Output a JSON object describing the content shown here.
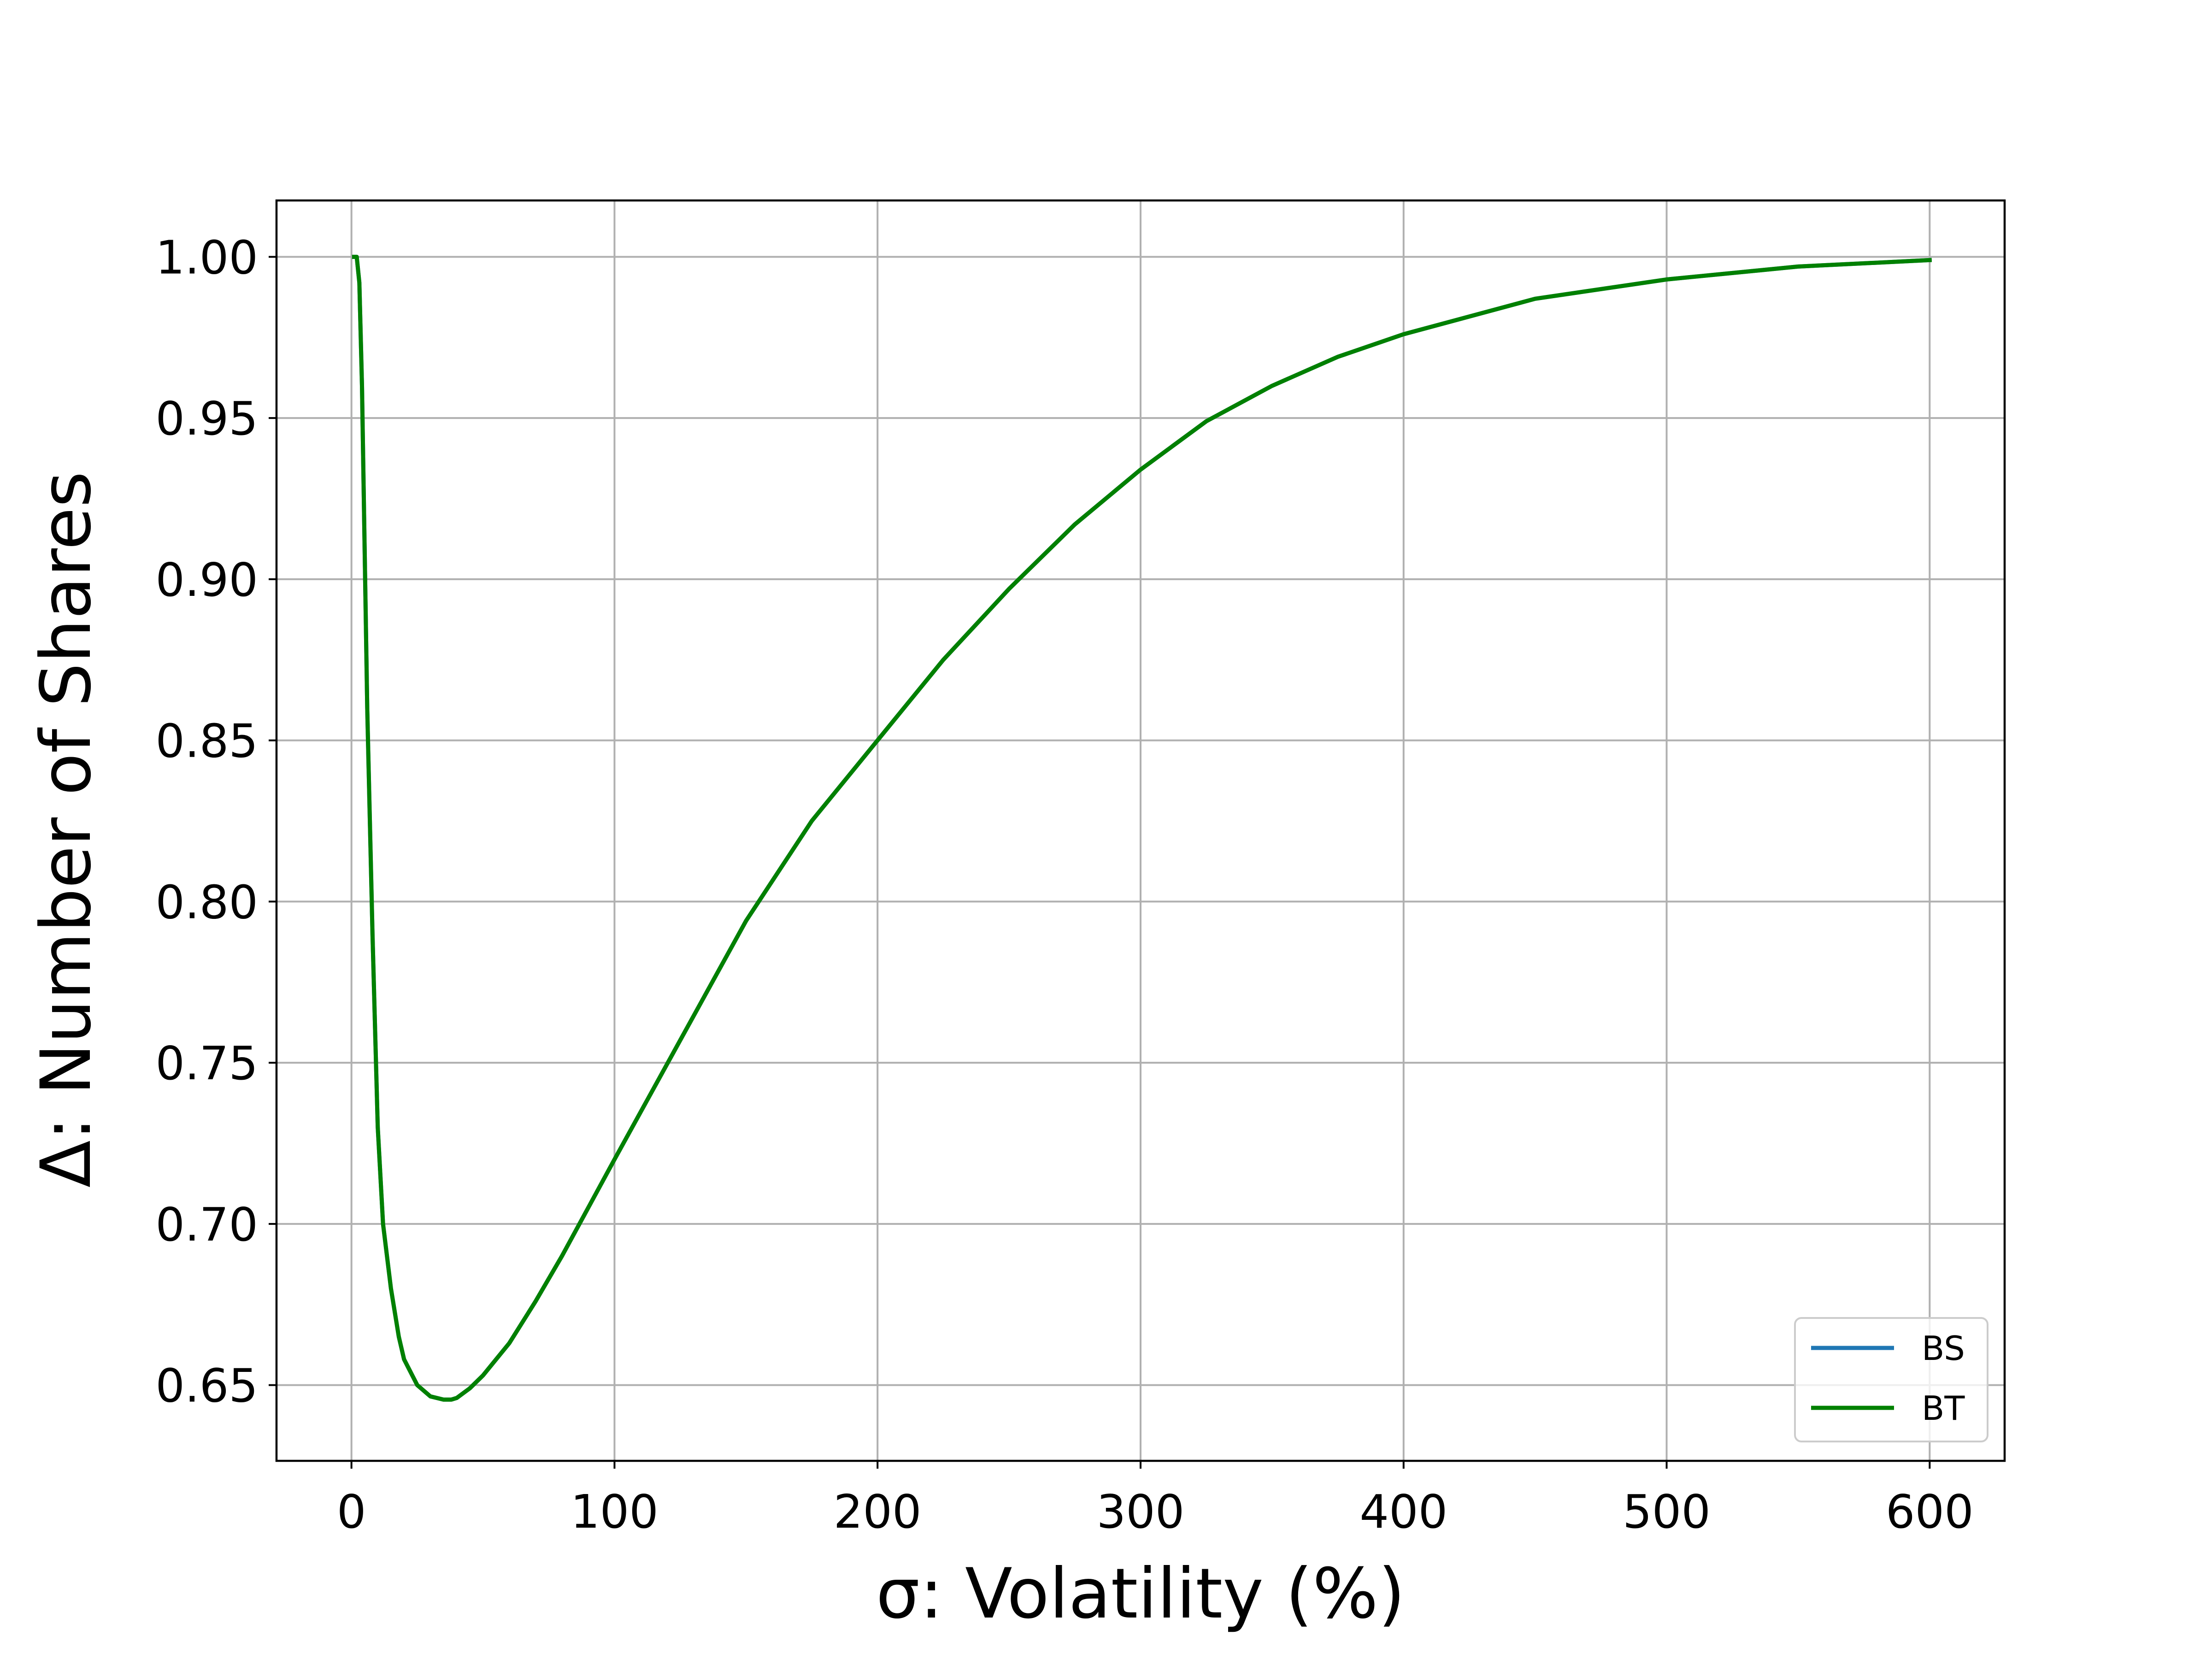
{
  "chart_data": {
    "type": "line",
    "xlabel": "σ: Volatility (%)",
    "ylabel": "Δ: Number of Shares",
    "xlim": [
      -28.5,
      628.5
    ],
    "ylim": [
      0.6265,
      1.0175
    ],
    "xticks": [
      0,
      100,
      200,
      300,
      400,
      500,
      600
    ],
    "xtick_labels": [
      "0",
      "100",
      "200",
      "300",
      "400",
      "500",
      "600"
    ],
    "yticks": [
      0.65,
      0.7,
      0.75,
      0.8,
      0.85,
      0.9,
      0.95,
      1.0
    ],
    "ytick_labels": [
      "0.65",
      "0.70",
      "0.75",
      "0.80",
      "0.85",
      "0.90",
      "0.95",
      "1.00"
    ],
    "grid": true,
    "legend_position": "lower-right",
    "colors": {
      "BS": "#1f77b4",
      "BT": "#008000",
      "grid": "#b0b0b0"
    },
    "x": [
      1,
      2,
      3,
      4,
      5,
      6,
      8,
      10,
      12,
      15,
      18,
      20,
      25,
      30,
      35,
      38,
      40,
      45,
      50,
      60,
      70,
      80,
      90,
      100,
      125,
      150,
      175,
      200,
      225,
      250,
      275,
      300,
      325,
      350,
      375,
      400,
      450,
      500,
      550,
      600
    ],
    "series": [
      {
        "name": "BS",
        "values": [
          1.0,
          1.0,
          0.992,
          0.96,
          0.91,
          0.86,
          0.79,
          0.73,
          0.7,
          0.68,
          0.665,
          0.658,
          0.65,
          0.6465,
          0.6455,
          0.6455,
          0.646,
          0.649,
          0.653,
          0.663,
          0.676,
          0.69,
          0.705,
          0.72,
          0.757,
          0.794,
          0.825,
          0.85,
          0.875,
          0.897,
          0.917,
          0.934,
          0.949,
          0.96,
          0.969,
          0.976,
          0.987,
          0.993,
          0.997,
          0.999
        ]
      },
      {
        "name": "BT",
        "values": [
          1.0,
          1.0,
          0.992,
          0.96,
          0.91,
          0.86,
          0.79,
          0.73,
          0.7,
          0.68,
          0.665,
          0.658,
          0.65,
          0.6465,
          0.6455,
          0.6455,
          0.646,
          0.649,
          0.653,
          0.663,
          0.676,
          0.69,
          0.705,
          0.72,
          0.757,
          0.794,
          0.825,
          0.85,
          0.875,
          0.897,
          0.917,
          0.934,
          0.949,
          0.96,
          0.969,
          0.976,
          0.987,
          0.993,
          0.997,
          0.999
        ]
      }
    ]
  }
}
